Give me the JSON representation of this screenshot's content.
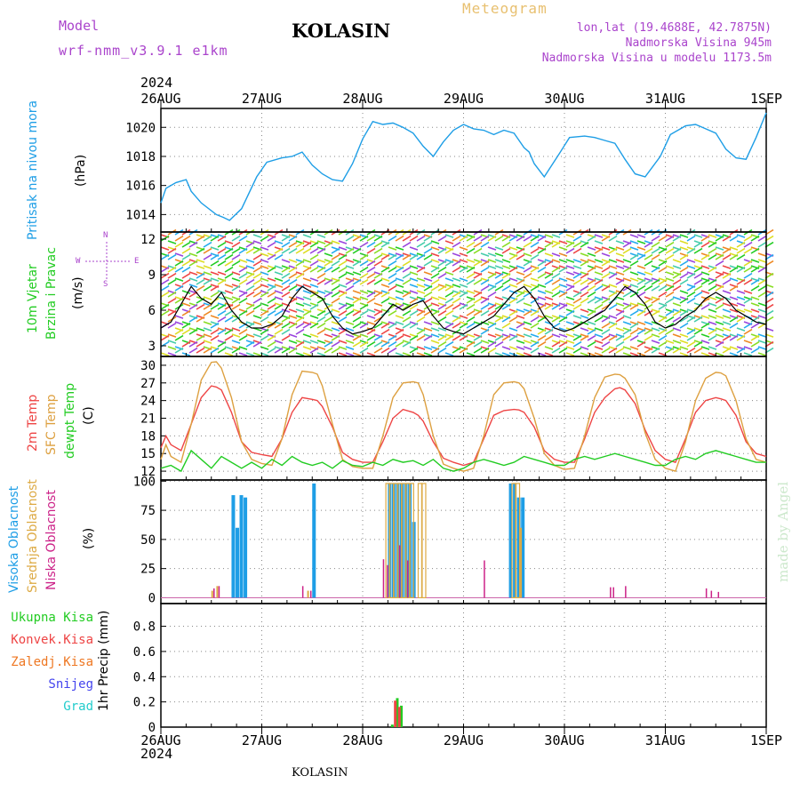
{
  "header": {
    "model_label": "Model",
    "model_name": "wrf-nmm_v3.9.1 e1km",
    "station_title": "KOLASIN",
    "meteogram_label": "Meteogram",
    "lonlat": "lon,lat (19.4688E, 42.7875N)",
    "altitude": "Nadmorska Visina 945m",
    "model_altitude": "Nadmorska Visina u modelu 1173.5m",
    "footer_station": "KOLASIN",
    "watermark": "made by Angel"
  },
  "colors": {
    "pressure": "#1e9ee6",
    "temp2m": "#ee4444",
    "sfc_temp": "#dda040",
    "dewpt": "#22cc22",
    "high_cloud": "#1e9ee6",
    "mid_cloud": "#ddaa44",
    "low_cloud": "#cc2288",
    "model_label": "#aa44cc",
    "meteogram_label": "#e8c070",
    "rain_total": "#22cc22",
    "rain_conv": "#ee4444",
    "rain_frozen": "#ee7722",
    "snow": "#4444ee",
    "hail": "#22cccc"
  },
  "time_axis": {
    "year_label_top": "2024",
    "year_label_bottom": "2024",
    "labels": [
      "26AUG",
      "27AUG",
      "28AUG",
      "29AUG",
      "30AUG",
      "31AUG",
      "1SEP"
    ]
  },
  "chart_data": [
    {
      "type": "line",
      "panel": "pressure",
      "ylabels": [
        "Pritisak na nivou mora",
        "(hPa)"
      ],
      "ylim": [
        1012.8,
        1021.3
      ],
      "yticks": [
        1014,
        1016,
        1018,
        1020
      ],
      "grid": true,
      "x_days": [
        0,
        0.05,
        0.15,
        0.25,
        0.3,
        0.4,
        0.55,
        0.62,
        0.68,
        0.8,
        0.95,
        1.05,
        1.2,
        1.3,
        1.4,
        1.5,
        1.6,
        1.7,
        1.8,
        1.9,
        2.0,
        2.1,
        2.2,
        2.3,
        2.4,
        2.5,
        2.6,
        2.7,
        2.8,
        2.9,
        3.0,
        3.1,
        3.2,
        3.3,
        3.4,
        3.5,
        3.6,
        3.65,
        3.7,
        3.8,
        3.95,
        4.05,
        4.2,
        4.3,
        4.4,
        4.5,
        4.6,
        4.7,
        4.8,
        4.95,
        5.05,
        5.2,
        5.3,
        5.4,
        5.5,
        5.6,
        5.7,
        5.8,
        5.9,
        6.0
      ],
      "values": [
        1014.8,
        1015.8,
        1016.2,
        1016.4,
        1015.6,
        1014.8,
        1014.0,
        1013.8,
        1013.6,
        1014.4,
        1016.6,
        1017.6,
        1017.9,
        1018.0,
        1018.3,
        1017.4,
        1016.8,
        1016.4,
        1016.3,
        1017.5,
        1019.2,
        1020.4,
        1020.2,
        1020.3,
        1020.0,
        1019.6,
        1018.7,
        1018.0,
        1019.0,
        1019.8,
        1020.2,
        1019.9,
        1019.8,
        1019.5,
        1019.8,
        1019.6,
        1018.6,
        1018.3,
        1017.5,
        1016.6,
        1018.2,
        1019.3,
        1019.4,
        1019.3,
        1019.1,
        1018.9,
        1017.8,
        1016.8,
        1016.6,
        1018.0,
        1019.5,
        1020.1,
        1020.2,
        1019.9,
        1019.6,
        1018.5,
        1017.9,
        1017.8,
        1019.3,
        1021.0
      ]
    },
    {
      "type": "line",
      "panel": "wind",
      "ylabels": [
        "10m Vjetar",
        "Brzina i Pravac",
        "(m/s)"
      ],
      "compass": [
        "N",
        "W",
        "E",
        "S"
      ],
      "ylim": [
        2.1,
        12.6
      ],
      "yticks": [
        3,
        6,
        9,
        12
      ],
      "grid": true,
      "x_days": [
        0,
        0.1,
        0.2,
        0.3,
        0.4,
        0.5,
        0.6,
        0.7,
        0.8,
        0.9,
        1.0,
        1.1,
        1.2,
        1.3,
        1.4,
        1.5,
        1.6,
        1.7,
        1.8,
        1.9,
        2.0,
        2.1,
        2.2,
        2.3,
        2.4,
        2.5,
        2.6,
        2.7,
        2.8,
        2.9,
        3.0,
        3.1,
        3.2,
        3.3,
        3.4,
        3.5,
        3.6,
        3.7,
        3.8,
        3.9,
        4.0,
        4.1,
        4.2,
        4.3,
        4.4,
        4.5,
        4.6,
        4.7,
        4.8,
        4.9,
        5.0,
        5.1,
        5.2,
        5.3,
        5.4,
        5.5,
        5.6,
        5.7,
        5.8,
        5.9,
        6.0
      ],
      "values": [
        4.5,
        5.0,
        6.5,
        8.0,
        7.0,
        6.5,
        7.5,
        6.0,
        5.0,
        4.5,
        4.5,
        4.8,
        5.5,
        7.0,
        8.0,
        7.5,
        7.0,
        5.5,
        4.5,
        4.0,
        4.2,
        4.5,
        5.5,
        6.5,
        6.0,
        6.5,
        6.8,
        5.5,
        4.5,
        4.2,
        4.0,
        4.5,
        5.0,
        5.5,
        6.5,
        7.5,
        8.0,
        7.0,
        5.5,
        4.5,
        4.2,
        4.5,
        5.0,
        5.5,
        6.0,
        7.0,
        8.0,
        7.5,
        6.5,
        5.0,
        4.5,
        4.8,
        5.5,
        6.0,
        7.0,
        7.5,
        7.0,
        6.0,
        5.5,
        5.0,
        4.8
      ]
    },
    {
      "type": "line",
      "panel": "temperature",
      "ylabels": [
        "2m Temp",
        "SFC Temp",
        "dewpt Temp",
        "(C)"
      ],
      "ylim": [
        10.5,
        31.5
      ],
      "yticks": [
        12,
        15,
        18,
        21,
        24,
        27,
        30
      ],
      "grid": true,
      "series": [
        {
          "name": "2m Temp",
          "x_days": [
            0,
            0.05,
            0.1,
            0.2,
            0.3,
            0.4,
            0.5,
            0.55,
            0.6,
            0.7,
            0.8,
            0.9,
            1.0,
            1.1,
            1.2,
            1.3,
            1.4,
            1.5,
            1.55,
            1.6,
            1.7,
            1.8,
            1.9,
            2.0,
            2.1,
            2.2,
            2.3,
            2.4,
            2.5,
            2.55,
            2.6,
            2.7,
            2.8,
            2.9,
            3.0,
            3.1,
            3.2,
            3.3,
            3.4,
            3.5,
            3.55,
            3.6,
            3.7,
            3.8,
            3.9,
            4.0,
            4.1,
            4.2,
            4.3,
            4.4,
            4.5,
            4.55,
            4.6,
            4.7,
            4.8,
            4.9,
            5.0,
            5.1,
            5.2,
            5.3,
            5.4,
            5.5,
            5.55,
            5.6,
            5.7,
            5.8,
            5.9,
            6.0
          ],
          "values": [
            16.0,
            18.0,
            16.5,
            15.5,
            20.0,
            24.5,
            26.5,
            26.3,
            25.8,
            22.0,
            17.0,
            15.2,
            14.8,
            14.5,
            17.5,
            22.0,
            24.5,
            24.2,
            24.0,
            23.0,
            19.5,
            15.2,
            14.0,
            13.5,
            13.5,
            17.0,
            21.0,
            22.5,
            22.0,
            21.5,
            20.5,
            17.0,
            14.2,
            13.5,
            13.0,
            13.5,
            17.5,
            21.5,
            22.3,
            22.5,
            22.4,
            22.0,
            19.5,
            15.5,
            14.0,
            13.5,
            13.5,
            17.5,
            22.0,
            24.5,
            26.0,
            26.2,
            25.8,
            23.5,
            19.0,
            15.5,
            14.0,
            13.5,
            17.5,
            22.0,
            24.0,
            24.5,
            24.3,
            24.0,
            21.5,
            17.0,
            15.0,
            14.5
          ]
        },
        {
          "name": "SFC Temp",
          "x_days": [
            0,
            0.05,
            0.1,
            0.2,
            0.3,
            0.4,
            0.5,
            0.55,
            0.6,
            0.7,
            0.8,
            0.9,
            1.0,
            1.1,
            1.2,
            1.3,
            1.4,
            1.5,
            1.55,
            1.6,
            1.7,
            1.8,
            1.9,
            2.0,
            2.1,
            2.2,
            2.3,
            2.4,
            2.5,
            2.55,
            2.6,
            2.7,
            2.8,
            2.9,
            3.0,
            3.1,
            3.2,
            3.3,
            3.4,
            3.5,
            3.55,
            3.6,
            3.7,
            3.8,
            3.9,
            4.0,
            4.1,
            4.2,
            4.3,
            4.4,
            4.5,
            4.55,
            4.6,
            4.7,
            4.8,
            4.9,
            5.0,
            5.1,
            5.2,
            5.3,
            5.4,
            5.5,
            5.55,
            5.6,
            5.7,
            5.8,
            5.9,
            6.0
          ],
          "values": [
            14.0,
            16.5,
            14.5,
            13.5,
            20.0,
            27.5,
            30.5,
            30.6,
            29.5,
            24.5,
            17.0,
            14.0,
            13.3,
            13.0,
            17.5,
            25.0,
            29.0,
            28.8,
            28.5,
            26.5,
            20.0,
            14.0,
            12.8,
            12.5,
            12.5,
            18.0,
            24.5,
            27.0,
            27.2,
            27.0,
            25.0,
            18.0,
            13.2,
            12.5,
            12.0,
            12.5,
            18.0,
            25.0,
            27.0,
            27.2,
            27.0,
            26.0,
            21.0,
            15.0,
            13.0,
            12.3,
            12.5,
            18.0,
            24.5,
            28.0,
            28.5,
            28.4,
            27.8,
            25.0,
            18.5,
            14.0,
            12.5,
            12.0,
            17.0,
            24.0,
            27.8,
            28.8,
            28.7,
            28.2,
            24.0,
            17.5,
            14.0,
            13.5
          ]
        },
        {
          "name": "dewpt Temp",
          "x_days": [
            0,
            0.1,
            0.2,
            0.3,
            0.4,
            0.5,
            0.6,
            0.7,
            0.8,
            0.9,
            1.0,
            1.1,
            1.2,
            1.3,
            1.4,
            1.5,
            1.6,
            1.7,
            1.8,
            1.9,
            2.0,
            2.1,
            2.2,
            2.3,
            2.4,
            2.5,
            2.6,
            2.7,
            2.8,
            2.9,
            3.0,
            3.1,
            3.2,
            3.3,
            3.4,
            3.5,
            3.6,
            3.7,
            3.8,
            3.9,
            4.0,
            4.1,
            4.2,
            4.3,
            4.4,
            4.5,
            4.6,
            4.7,
            4.8,
            4.9,
            5.0,
            5.1,
            5.2,
            5.3,
            5.4,
            5.5,
            5.6,
            5.7,
            5.8,
            5.9,
            6.0
          ],
          "values": [
            12.5,
            13.0,
            12.0,
            15.5,
            14.0,
            12.5,
            14.5,
            13.5,
            12.5,
            13.5,
            12.5,
            14.0,
            13.0,
            14.5,
            13.5,
            13.0,
            13.5,
            12.5,
            13.8,
            13.0,
            12.8,
            13.5,
            13.0,
            14.0,
            13.5,
            13.8,
            13.0,
            14.0,
            12.5,
            12.0,
            12.5,
            13.5,
            14.0,
            13.5,
            13.0,
            13.5,
            14.5,
            14.0,
            13.5,
            13.0,
            13.0,
            14.0,
            14.5,
            14.0,
            14.5,
            15.0,
            14.5,
            14.0,
            13.5,
            13.0,
            13.0,
            14.0,
            14.5,
            14.0,
            15.0,
            15.5,
            15.0,
            14.5,
            14.0,
            13.5,
            13.5
          ]
        }
      ]
    },
    {
      "type": "bar",
      "panel": "cloud",
      "ylabels": [
        "Visoka Oblacnost",
        "Srednja Oblacnost",
        "Niska Oblacnost",
        "(%)"
      ],
      "ylim": [
        -5,
        101
      ],
      "yticks": [
        0,
        25,
        50,
        75,
        100
      ],
      "grid": true,
      "series": [
        {
          "name": "Visoka Oblacnost",
          "bars": [
            [
              0.7,
              88
            ],
            [
              0.74,
              60
            ],
            [
              0.78,
              88
            ],
            [
              0.82,
              86
            ],
            [
              1.5,
              98
            ],
            [
              2.25,
              98
            ],
            [
              2.29,
              98
            ],
            [
              2.33,
              98
            ],
            [
              2.37,
              98
            ],
            [
              2.41,
              98
            ],
            [
              2.45,
              98
            ],
            [
              2.49,
              65
            ],
            [
              3.45,
              98
            ],
            [
              3.49,
              98
            ],
            [
              3.53,
              86
            ],
            [
              3.57,
              86
            ]
          ]
        },
        {
          "name": "Srednja Oblacnost",
          "bars": [
            [
              0.5,
              6
            ],
            [
              0.55,
              10
            ],
            [
              1.45,
              6
            ],
            [
              2.23,
              98
            ],
            [
              2.27,
              98
            ],
            [
              2.31,
              98
            ],
            [
              2.35,
              98
            ],
            [
              2.39,
              98
            ],
            [
              2.43,
              98
            ],
            [
              2.47,
              98
            ],
            [
              2.55,
              98
            ],
            [
              2.59,
              98
            ],
            [
              3.48,
              98
            ],
            [
              3.52,
              98
            ],
            [
              3.56,
              60
            ]
          ]
        },
        {
          "name": "Niska Oblacnost",
          "bars": [
            [
              0.52,
              8
            ],
            [
              0.57,
              10
            ],
            [
              1.4,
              10
            ],
            [
              1.48,
              6
            ],
            [
              2.2,
              33
            ],
            [
              2.24,
              28
            ],
            [
              2.36,
              45
            ],
            [
              2.44,
              32
            ],
            [
              3.2,
              32
            ],
            [
              4.45,
              9
            ],
            [
              4.48,
              9
            ],
            [
              4.6,
              10
            ],
            [
              5.4,
              8
            ],
            [
              5.45,
              6
            ],
            [
              5.52,
              5
            ]
          ]
        }
      ]
    },
    {
      "type": "bar",
      "panel": "precip",
      "ylabels": [
        "1hr Precip (mm)"
      ],
      "legend": [
        "Ukupna Kisa",
        "Konvek.Kisa",
        "Zaledj.Kisa",
        "Snijeg",
        "Grad"
      ],
      "ylim": [
        0,
        0.98
      ],
      "yticks": [
        0,
        0.2,
        0.4,
        0.6,
        0.8
      ],
      "grid": true,
      "series": [
        {
          "name": "Ukupna Kisa",
          "bars": [
            [
              2.28,
              0.02
            ],
            [
              2.33,
              0.23
            ],
            [
              2.37,
              0.17
            ]
          ]
        },
        {
          "name": "Konvek.Kisa",
          "bars": [
            [
              2.31,
              0.21
            ],
            [
              2.35,
              0.16
            ]
          ]
        }
      ]
    }
  ]
}
